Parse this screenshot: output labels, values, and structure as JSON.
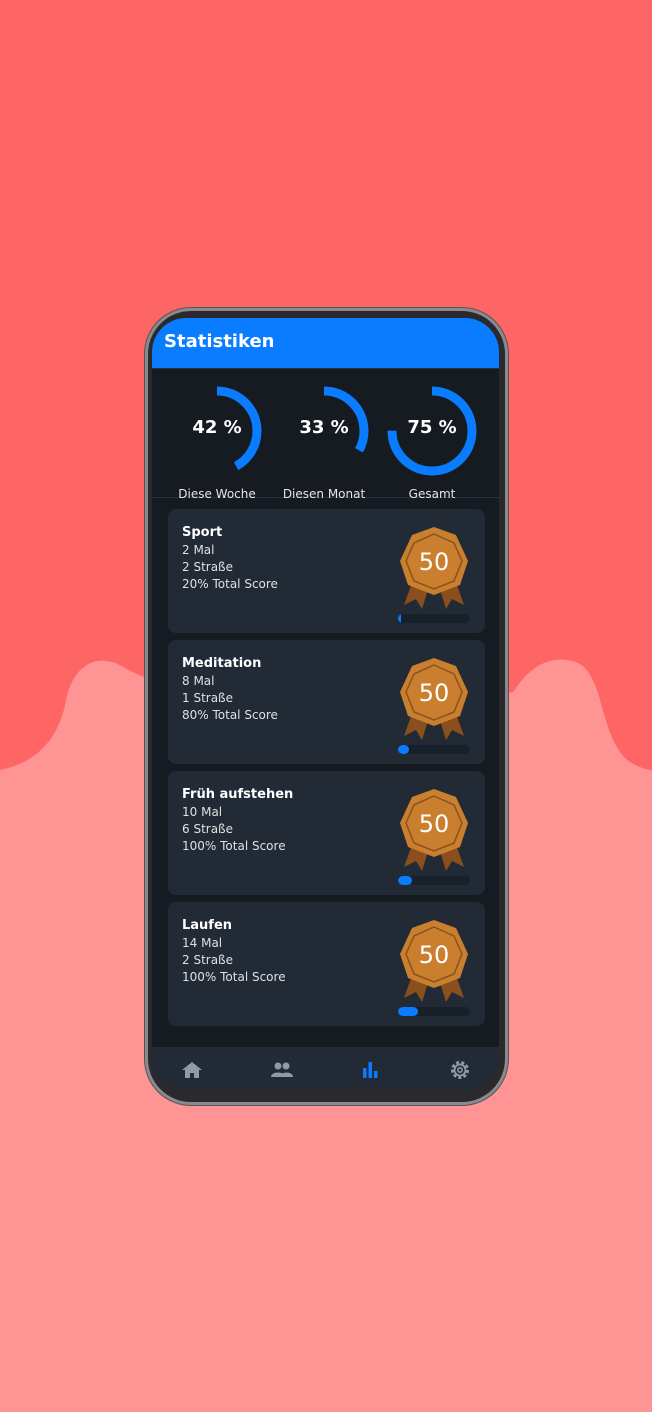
{
  "header": {
    "title": "Statistiken"
  },
  "colors": {
    "accent": "#0a7cff",
    "background_top": "#fe6565",
    "background_bottom": "#fe9494",
    "badge": "#c97f2e"
  },
  "stats": [
    {
      "value": 42,
      "display": "42 %",
      "label": "Diese Woche"
    },
    {
      "value": 33,
      "display": "33 %",
      "label": "Diesen Monat"
    },
    {
      "value": 75,
      "display": "75 %",
      "label": "Gesamt"
    }
  ],
  "cards": [
    {
      "name": "Sport",
      "count": "2 Mal",
      "streak": "2 Straße",
      "score": "20% Total Score",
      "badge": "50",
      "progress": 4
    },
    {
      "name": "Meditation",
      "count": "8 Mal",
      "streak": "1 Straße",
      "score": "80% Total Score",
      "badge": "50",
      "progress": 15
    },
    {
      "name": "Früh aufstehen",
      "count": "10 Mal",
      "streak": "6 Straße",
      "score": "100% Total Score",
      "badge": "50",
      "progress": 20
    },
    {
      "name": "Laufen",
      "count": "14 Mal",
      "streak": "2 Straße",
      "score": "100% Total Score",
      "badge": "50",
      "progress": 28
    }
  ],
  "nav": [
    {
      "icon": "home-icon",
      "active": false
    },
    {
      "icon": "people-icon",
      "active": false
    },
    {
      "icon": "bar-chart-icon",
      "active": true
    },
    {
      "icon": "gear-icon",
      "active": false
    }
  ]
}
